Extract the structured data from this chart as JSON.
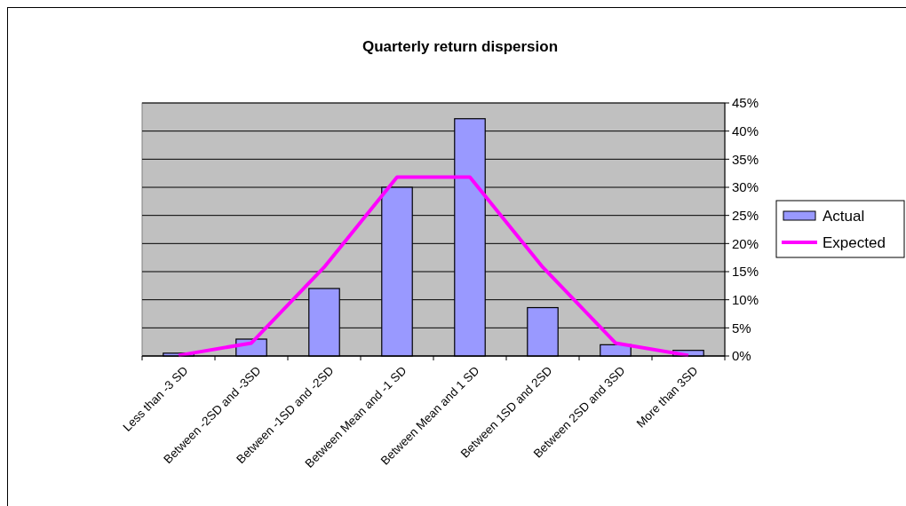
{
  "chart_data": {
    "type": "bar",
    "title": "Quarterly return dispersion",
    "categories": [
      "Less than -3 SD",
      "Between -2SD and -3SD",
      "Between -1SD and -2SD",
      "Between Mean and -1 SD",
      "Between Mean and 1 SD",
      "Between 1SD and 2SD",
      "Between 2SD and 3SD",
      "More than 3SD"
    ],
    "series": [
      {
        "name": "Actual",
        "color": "#9999ff",
        "values": [
          0.5,
          3,
          12,
          30,
          42.2,
          8.6,
          2,
          1
        ]
      },
      {
        "name": "Expected",
        "type": "line",
        "color": "#ff00ff",
        "values": [
          0.1,
          2.3,
          15.8,
          31.8,
          31.8,
          15.8,
          2.3,
          0.1
        ]
      }
    ],
    "ylim": [
      0,
      45
    ],
    "yticks": [
      {
        "value": 0,
        "label": "0%"
      },
      {
        "value": 5,
        "label": "5%"
      },
      {
        "value": 10,
        "label": "10%"
      },
      {
        "value": 15,
        "label": "15%"
      },
      {
        "value": 20,
        "label": "20%"
      },
      {
        "value": 25,
        "label": "25%"
      },
      {
        "value": 30,
        "label": "30%"
      },
      {
        "value": 35,
        "label": "35%"
      },
      {
        "value": 40,
        "label": "40%"
      },
      {
        "value": 45,
        "label": "45%"
      }
    ],
    "grid": "y",
    "legend": "right",
    "marker": "none",
    "line_style": "solid"
  }
}
